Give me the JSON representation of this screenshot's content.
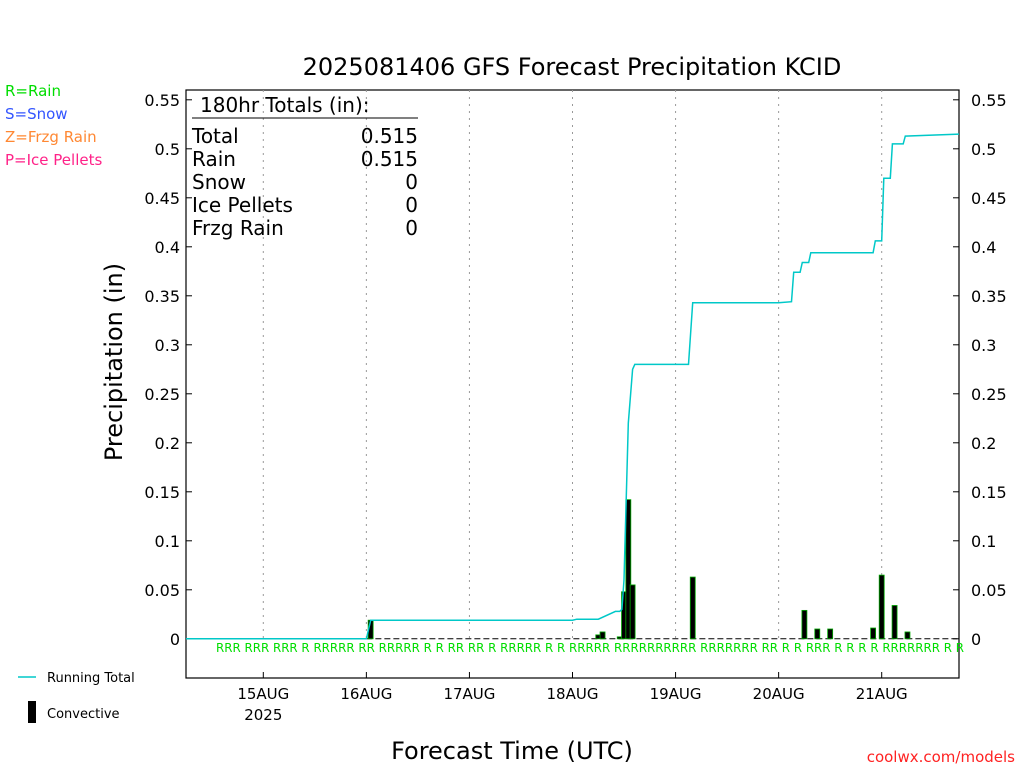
{
  "title": "2025081406 GFS Forecast Precipitation KCID",
  "legend_left": [
    {
      "label": "R=Rain",
      "color": "#00dd00"
    },
    {
      "label": "S=Snow",
      "color": "#3355ff"
    },
    {
      "label": "Z=Frzg Rain",
      "color": "#ff8833"
    },
    {
      "label": "P=Ice Pellets",
      "color": "#ff2288"
    }
  ],
  "totals": {
    "header": "180hr Totals (in):",
    "rows": [
      {
        "label": "Total",
        "value": "0.515"
      },
      {
        "label": "Rain",
        "value": "0.515"
      },
      {
        "label": "Snow",
        "value": "0"
      },
      {
        "label": "Ice Pellets",
        "value": "0"
      },
      {
        "label": "Frzg Rain",
        "value": "0"
      }
    ]
  },
  "bottom_legend": {
    "running_total": "Running Total",
    "convective": "Convective"
  },
  "credit": "coolwx.com/models",
  "colors": {
    "running_total": "#00c8c8",
    "bar_fill": "#000000",
    "bar_edge": "#00aa00",
    "rain_marker": "#00dd00",
    "credit": "#ff2222",
    "grid": "#999999"
  },
  "chart_data": {
    "type": "bar",
    "title": "2025081406 GFS Forecast Precipitation KCID",
    "xlabel": "Forecast Time (UTC)",
    "ylabel": "Precipitation (in)",
    "ylim": [
      -0.04,
      0.56
    ],
    "yticks": [
      0,
      0.05,
      0.1,
      0.15,
      0.2,
      0.25,
      0.3,
      0.35,
      0.4,
      0.45,
      0.5,
      0.55
    ],
    "ytick_labels": [
      "0",
      "0.05",
      "0.1",
      "0.15",
      "0.2",
      "0.25",
      "0.3",
      "0.35",
      "0.4",
      "0.45",
      "0.5",
      "0.55"
    ],
    "xlim_hours": [
      6,
      186
    ],
    "xticks": [
      {
        "hour": 24,
        "label": "15AUG",
        "sublabel": "2025"
      },
      {
        "hour": 48,
        "label": "16AUG"
      },
      {
        "hour": 72,
        "label": "17AUG"
      },
      {
        "hour": 96,
        "label": "18AUG"
      },
      {
        "hour": 120,
        "label": "19AUG"
      },
      {
        "hour": 144,
        "label": "20AUG"
      },
      {
        "hour": 168,
        "label": "21AUG"
      }
    ],
    "grid": "vertical dotted",
    "series": [
      {
        "name": "Running Total",
        "type": "line",
        "x_hours": [
          6,
          48,
          49,
          96,
          97,
          102,
          106,
          107,
          107.5,
          108,
          109,
          110,
          110.5,
          118,
          123,
          124,
          144,
          147,
          147.5,
          149,
          149.5,
          151,
          151.5,
          166,
          166.5,
          168,
          168.5,
          170,
          170.5,
          173,
          173.5,
          186
        ],
        "values": [
          0,
          0,
          0.019,
          0.019,
          0.02,
          0.02,
          0.028,
          0.028,
          0.03,
          0.06,
          0.22,
          0.275,
          0.28,
          0.28,
          0.28,
          0.343,
          0.343,
          0.344,
          0.374,
          0.374,
          0.384,
          0.384,
          0.394,
          0.394,
          0.406,
          0.406,
          0.47,
          0.47,
          0.505,
          0.505,
          0.513,
          0.515
        ]
      },
      {
        "name": "Convective",
        "type": "bar",
        "x_hours": [
          49,
          102,
          103,
          107,
          108,
          109,
          110,
          124,
          150,
          153,
          156,
          166,
          168,
          171,
          174
        ],
        "values": [
          0.019,
          0.004,
          0.007,
          0.002,
          0.048,
          0.142,
          0.055,
          0.063,
          0.029,
          0.01,
          0.01,
          0.011,
          0.065,
          0.034,
          0.007
        ]
      }
    ],
    "rain_markers": "RRR RRR RRR R RRRRR RR RRRRR R R RR RR R RRRRR R R RRRRR RRRRRRRRRR RRRRRRR RR R R RRR R R R R RRRRRRR R R"
  }
}
